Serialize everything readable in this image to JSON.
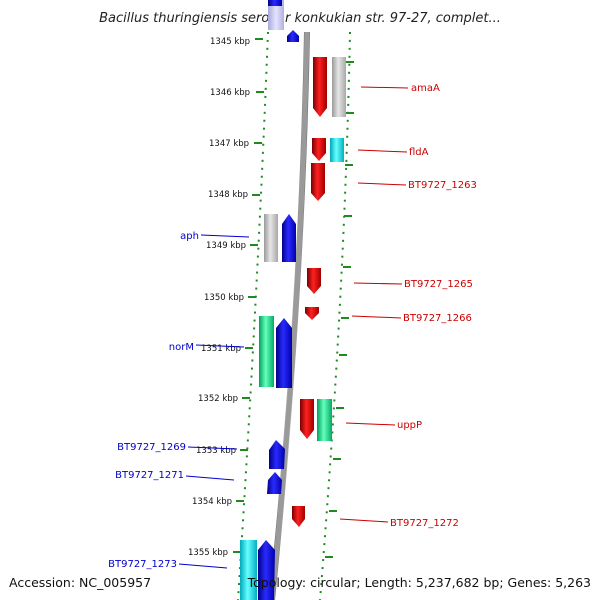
{
  "title": "Bacillus thuringiensis serovar konkukian str. 97-27, complet...",
  "footer": {
    "accession": "Accession: NC_005957",
    "topology": "Topology: circular; Length: 5,237,682 bp; Genes: 5,263"
  },
  "colors": {
    "forward_label": "#cc0000",
    "reverse_label": "#0000cc",
    "backbone": "#888888",
    "ruler": "#228822"
  },
  "ruler": {
    "ticks": [
      "1345 kbp",
      "1346 kbp",
      "1347 kbp",
      "1348 kbp",
      "1349 kbp",
      "1350 kbp",
      "1351 kbp",
      "1352 kbp",
      "1353 kbp",
      "1354 kbp",
      "1355 kbp"
    ]
  },
  "labels": [
    {
      "text": "amaA",
      "strand": "forward"
    },
    {
      "text": "fldA",
      "strand": "forward"
    },
    {
      "text": "BT9727_1263",
      "strand": "forward"
    },
    {
      "text": "aph",
      "strand": "reverse"
    },
    {
      "text": "BT9727_1265",
      "strand": "forward"
    },
    {
      "text": "BT9727_1266",
      "strand": "forward"
    },
    {
      "text": "norM",
      "strand": "reverse"
    },
    {
      "text": "uppP",
      "strand": "forward"
    },
    {
      "text": "BT9727_1269",
      "strand": "reverse"
    },
    {
      "text": "BT9727_1271",
      "strand": "reverse"
    },
    {
      "text": "BT9727_1272",
      "strand": "forward"
    },
    {
      "text": "BT9727_1273",
      "strand": "reverse"
    }
  ]
}
